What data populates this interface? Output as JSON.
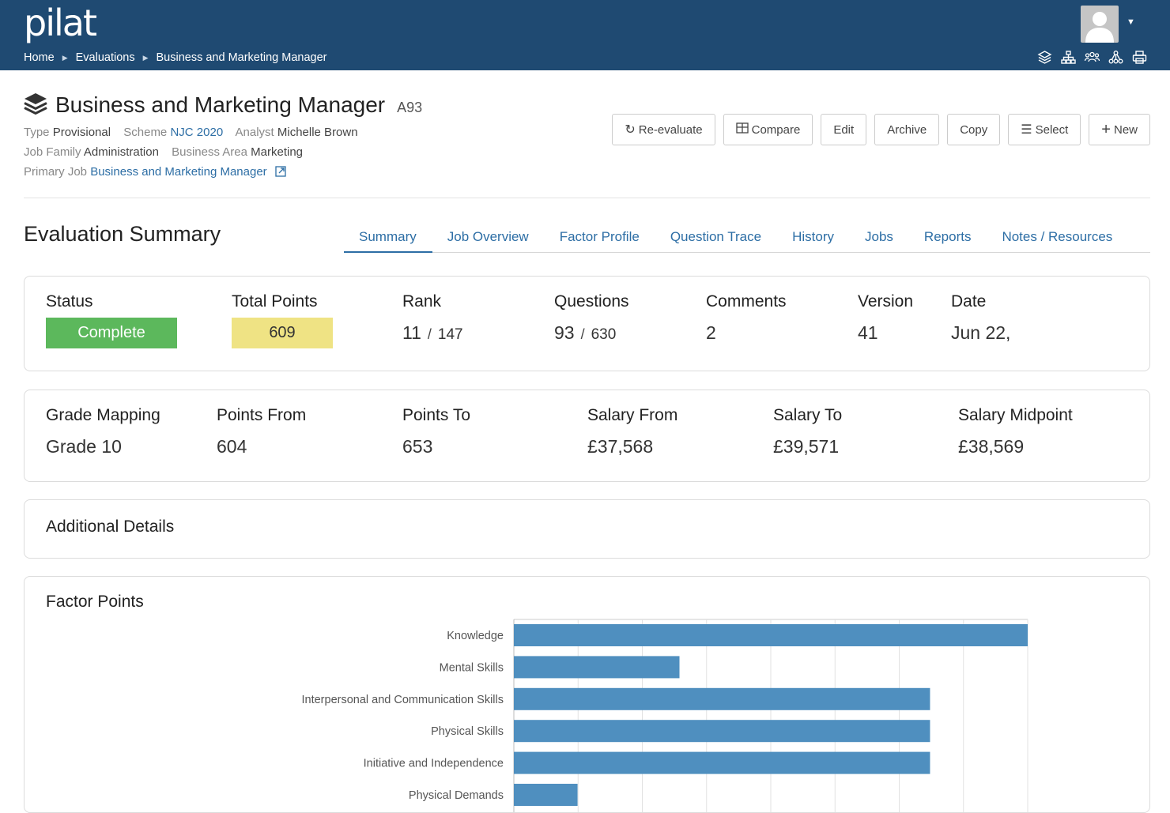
{
  "app": {
    "logo": "pilat"
  },
  "breadcrumb": [
    "Home",
    "Evaluations",
    "Business and Marketing Manager"
  ],
  "header_icons": [
    "layers-icon",
    "org-chart-icon",
    "people-icon",
    "hierarchy-icon",
    "print-icon"
  ],
  "job": {
    "title": "Business and Marketing Manager",
    "code": "A93",
    "type_label": "Type",
    "type": "Provisional",
    "scheme_label": "Scheme",
    "scheme": "NJC 2020",
    "analyst_label": "Analyst",
    "analyst": "Michelle Brown",
    "job_family_label": "Job Family",
    "job_family": "Administration",
    "business_area_label": "Business Area",
    "business_area": "Marketing",
    "primary_job_label": "Primary Job",
    "primary_job": "Business and Marketing Manager"
  },
  "toolbar": {
    "reevaluate": "Re-evaluate",
    "compare": "Compare",
    "edit": "Edit",
    "archive": "Archive",
    "copy": "Copy",
    "select": "Select",
    "new": "New"
  },
  "section": {
    "title": "Evaluation Summary"
  },
  "tabs": [
    "Summary",
    "Job Overview",
    "Factor Profile",
    "Question Trace",
    "History",
    "Jobs",
    "Reports",
    "Notes / Resources"
  ],
  "active_tab": "Summary",
  "summary": {
    "status_label": "Status",
    "status": "Complete",
    "total_points_label": "Total Points",
    "total_points": "609",
    "rank_label": "Rank",
    "rank": "11",
    "rank_of": "147",
    "questions_label": "Questions",
    "questions": "93",
    "questions_of": "630",
    "comments_label": "Comments",
    "comments": "2",
    "version_label": "Version",
    "version": "41",
    "date_label": "Date",
    "date": "Jun 22,"
  },
  "grade": {
    "grade_mapping_label": "Grade Mapping",
    "grade_mapping": "Grade 10",
    "points_from_label": "Points From",
    "points_from": "604",
    "points_to_label": "Points To",
    "points_to": "653",
    "salary_from_label": "Salary From",
    "salary_from": "£37,568",
    "salary_to_label": "Salary To",
    "salary_to": "£39,571",
    "salary_midpoint_label": "Salary Midpoint",
    "salary_midpoint": "£38,569"
  },
  "additional": {
    "title": "Additional Details"
  },
  "factor": {
    "title": "Factor Points"
  },
  "colors": {
    "header": "#1f4a72",
    "link": "#2d6ea5",
    "complete": "#5cb85c",
    "points": "#efe384",
    "bar": "#4f8fbf"
  },
  "chart_data": {
    "type": "bar",
    "orientation": "horizontal",
    "categories": [
      "Knowledge",
      "Mental Skills",
      "Interpersonal and Communication Skills",
      "Physical Skills",
      "Initiative and Independence",
      "Physical Demands"
    ],
    "values": [
      121,
      39,
      98,
      98,
      98,
      15
    ],
    "xlim": [
      0,
      121
    ],
    "grid": true
  }
}
